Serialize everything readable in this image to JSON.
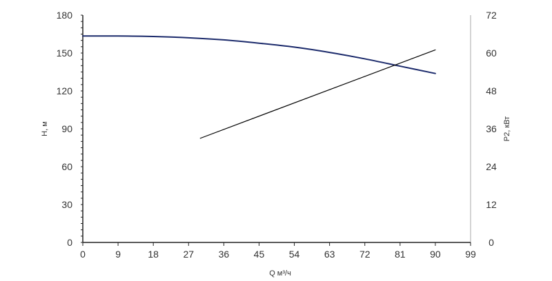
{
  "chart_data": {
    "type": "line",
    "title": "",
    "xlabel": "Q м³/ч",
    "ylabel_left": "H, м",
    "ylabel_right": "P2, кВт",
    "xlim": [
      0,
      99
    ],
    "ylim_left": [
      0,
      180
    ],
    "ylim_right": [
      0,
      72
    ],
    "x_ticks": [
      "0",
      "9",
      "18",
      "27",
      "36",
      "45",
      "54",
      "63",
      "72",
      "81",
      "90",
      "99"
    ],
    "y_left_ticks": [
      "0",
      "30",
      "60",
      "90",
      "120",
      "150",
      "180"
    ],
    "y_right_ticks": [
      "0",
      "12",
      "24",
      "36",
      "48",
      "60",
      "72"
    ],
    "grid": false,
    "legend": "none",
    "series": [
      {
        "axis": "left",
        "color": "#1b2a6b",
        "x": [
          0,
          9,
          18,
          27,
          36,
          45,
          54,
          63,
          72,
          81,
          90
        ],
        "y": [
          163.5,
          163.5,
          163.1,
          162.1,
          160.4,
          157.8,
          154.7,
          150.5,
          145.4,
          139.6,
          133.8
        ]
      },
      {
        "axis": "right",
        "color": "#000000",
        "x": [
          30,
          90
        ],
        "y": [
          33.0,
          61.0
        ]
      }
    ]
  }
}
